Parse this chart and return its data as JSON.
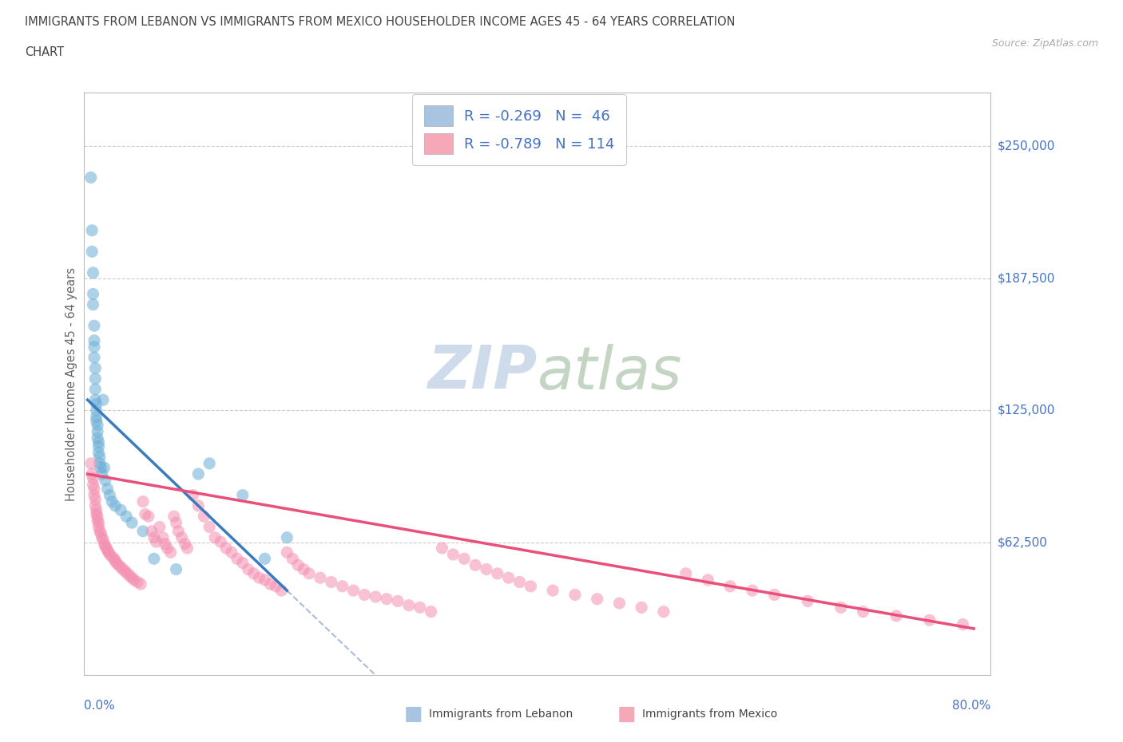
{
  "title_line1": "IMMIGRANTS FROM LEBANON VS IMMIGRANTS FROM MEXICO HOUSEHOLDER INCOME AGES 45 - 64 YEARS CORRELATION",
  "title_line2": "CHART",
  "source_text": "Source: ZipAtlas.com",
  "ylabel": "Householder Income Ages 45 - 64 years",
  "ytick_labels": [
    "$62,500",
    "$125,000",
    "$187,500",
    "$250,000"
  ],
  "ytick_values": [
    62500,
    125000,
    187500,
    250000
  ],
  "ymin": 0,
  "ymax": 275000,
  "xmin": -0.003,
  "xmax": 0.815,
  "color_lebanon": "#6baed6",
  "color_mexico": "#f48fb1",
  "legend_box_colors": [
    "#a8c4e0",
    "#f4a8b8"
  ],
  "legend_labels": [
    "R = -0.269   N =  46",
    "R = -0.789   N = 114"
  ],
  "watermark_color": "#c8d8e8",
  "trendline_lebanon_color": "#3a7bbf",
  "trendline_mexico_color": "#e8507a",
  "dashed_color": "#aabbdd",
  "lebanon_x": [
    0.003,
    0.004,
    0.004,
    0.005,
    0.005,
    0.005,
    0.006,
    0.006,
    0.006,
    0.006,
    0.007,
    0.007,
    0.007,
    0.007,
    0.008,
    0.008,
    0.008,
    0.008,
    0.009,
    0.009,
    0.009,
    0.01,
    0.01,
    0.01,
    0.011,
    0.011,
    0.012,
    0.013,
    0.014,
    0.015,
    0.016,
    0.018,
    0.02,
    0.022,
    0.025,
    0.03,
    0.035,
    0.04,
    0.05,
    0.06,
    0.08,
    0.1,
    0.11,
    0.14,
    0.16,
    0.18
  ],
  "lebanon_y": [
    235000,
    210000,
    200000,
    190000,
    175000,
    180000,
    165000,
    158000,
    155000,
    150000,
    145000,
    140000,
    135000,
    130000,
    128000,
    125000,
    122000,
    120000,
    118000,
    115000,
    112000,
    110000,
    108000,
    105000,
    103000,
    100000,
    98000,
    95000,
    130000,
    98000,
    92000,
    88000,
    85000,
    82000,
    80000,
    78000,
    75000,
    72000,
    68000,
    55000,
    50000,
    95000,
    100000,
    85000,
    55000,
    65000
  ],
  "mexico_x": [
    0.003,
    0.004,
    0.005,
    0.005,
    0.006,
    0.006,
    0.007,
    0.007,
    0.008,
    0.008,
    0.009,
    0.009,
    0.01,
    0.01,
    0.011,
    0.012,
    0.013,
    0.014,
    0.015,
    0.016,
    0.017,
    0.018,
    0.019,
    0.02,
    0.022,
    0.024,
    0.025,
    0.026,
    0.028,
    0.03,
    0.032,
    0.034,
    0.036,
    0.038,
    0.04,
    0.042,
    0.045,
    0.048,
    0.05,
    0.052,
    0.055,
    0.058,
    0.06,
    0.062,
    0.065,
    0.068,
    0.07,
    0.072,
    0.075,
    0.078,
    0.08,
    0.082,
    0.085,
    0.088,
    0.09,
    0.095,
    0.1,
    0.105,
    0.11,
    0.115,
    0.12,
    0.125,
    0.13,
    0.135,
    0.14,
    0.145,
    0.15,
    0.155,
    0.16,
    0.165,
    0.17,
    0.175,
    0.18,
    0.185,
    0.19,
    0.195,
    0.2,
    0.21,
    0.22,
    0.23,
    0.24,
    0.25,
    0.26,
    0.27,
    0.28,
    0.29,
    0.3,
    0.31,
    0.32,
    0.33,
    0.34,
    0.35,
    0.36,
    0.37,
    0.38,
    0.39,
    0.4,
    0.42,
    0.44,
    0.46,
    0.48,
    0.5,
    0.52,
    0.54,
    0.56,
    0.58,
    0.6,
    0.62,
    0.65,
    0.68,
    0.7,
    0.73,
    0.76,
    0.79
  ],
  "mexico_y": [
    100000,
    95000,
    93000,
    90000,
    88000,
    85000,
    83000,
    80000,
    78000,
    76000,
    75000,
    73000,
    72000,
    70000,
    68000,
    67000,
    65000,
    64000,
    62000,
    61000,
    60000,
    59000,
    58000,
    57000,
    56000,
    55000,
    54000,
    53000,
    52000,
    51000,
    50000,
    49000,
    48000,
    47000,
    46000,
    45000,
    44000,
    43000,
    82000,
    76000,
    75000,
    68000,
    65000,
    63000,
    70000,
    65000,
    62000,
    60000,
    58000,
    75000,
    72000,
    68000,
    65000,
    62000,
    60000,
    85000,
    80000,
    75000,
    70000,
    65000,
    63000,
    60000,
    58000,
    55000,
    53000,
    50000,
    48000,
    46000,
    45000,
    43000,
    42000,
    40000,
    58000,
    55000,
    52000,
    50000,
    48000,
    46000,
    44000,
    42000,
    40000,
    38000,
    37000,
    36000,
    35000,
    33000,
    32000,
    30000,
    60000,
    57000,
    55000,
    52000,
    50000,
    48000,
    46000,
    44000,
    42000,
    40000,
    38000,
    36000,
    34000,
    32000,
    30000,
    48000,
    45000,
    42000,
    40000,
    38000,
    35000,
    32000,
    30000,
    28000,
    26000,
    24000
  ]
}
